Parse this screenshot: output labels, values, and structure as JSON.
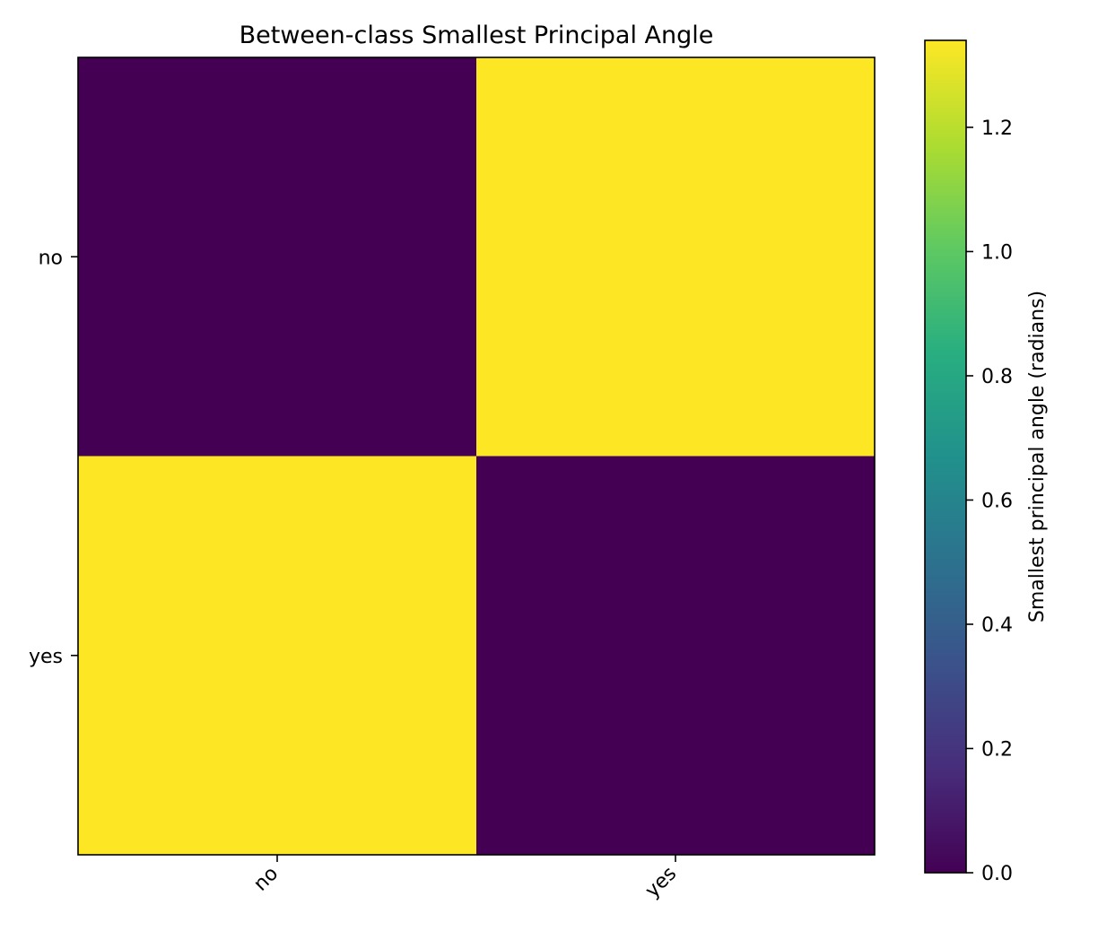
{
  "chart_data": {
    "type": "heatmap",
    "title": "Between-class Smallest Principal Angle",
    "x_categories": [
      "no",
      "yes"
    ],
    "y_categories": [
      "no",
      "yes"
    ],
    "values": [
      [
        0.0,
        1.34
      ],
      [
        1.34,
        0.0
      ]
    ],
    "colorbar": {
      "label": "Smallest principal angle (radians)",
      "range": [
        0.0,
        1.34
      ],
      "ticks": [
        0.0,
        0.2,
        0.4,
        0.6,
        0.8,
        1.0,
        1.2
      ],
      "tick_labels": [
        "0.0",
        "0.2",
        "0.4",
        "0.6",
        "0.8",
        "1.0",
        "1.2"
      ],
      "colormap": "viridis"
    },
    "x_tick_rotation": "45 degrees",
    "grid": false
  }
}
